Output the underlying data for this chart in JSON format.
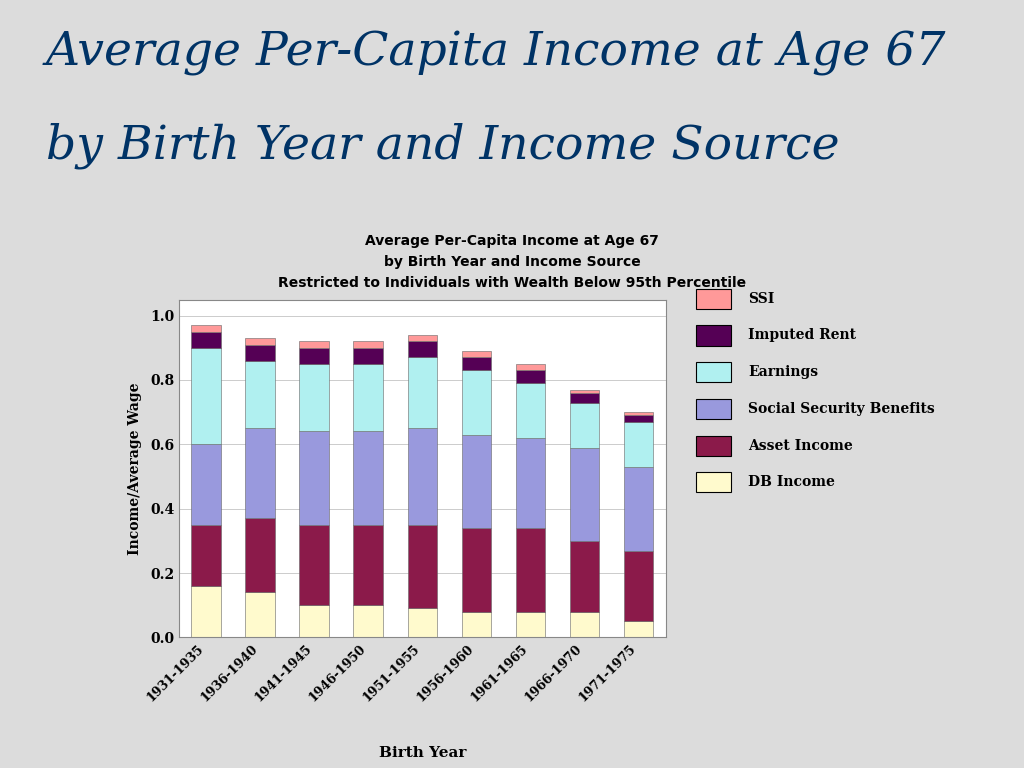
{
  "title_line1": "Average Per-Capita Income at Age 67",
  "title_line2": "by Birth Year and Income Source",
  "chart_subtitle1": "Average Per-Capita Income at Age 67",
  "chart_subtitle2": "by Birth Year and Income Source",
  "chart_subtitle3": "Restricted to Individuals with Wealth Below 95th Percentile",
  "xlabel": "Birth Year",
  "ylabel": "Income/Average Wage",
  "categories": [
    "1931-1935",
    "1936-1940",
    "1941-1945",
    "1946-1950",
    "1951-1955",
    "1956-1960",
    "1961-1965",
    "1966-1970",
    "1971-1975"
  ],
  "series_order": [
    "DB Income",
    "Asset Income",
    "Social Security Benefits",
    "Earnings",
    "Imputed Rent",
    "SSI"
  ],
  "series": {
    "DB Income": [
      0.16,
      0.14,
      0.1,
      0.1,
      0.09,
      0.08,
      0.08,
      0.08,
      0.05
    ],
    "Asset Income": [
      0.19,
      0.23,
      0.25,
      0.25,
      0.26,
      0.26,
      0.26,
      0.22,
      0.22
    ],
    "Social Security Benefits": [
      0.25,
      0.28,
      0.29,
      0.29,
      0.3,
      0.29,
      0.28,
      0.29,
      0.26
    ],
    "Earnings": [
      0.3,
      0.21,
      0.21,
      0.21,
      0.22,
      0.2,
      0.17,
      0.14,
      0.14
    ],
    "Imputed Rent": [
      0.05,
      0.05,
      0.05,
      0.05,
      0.05,
      0.04,
      0.04,
      0.03,
      0.02
    ],
    "SSI": [
      0.02,
      0.02,
      0.02,
      0.02,
      0.02,
      0.02,
      0.02,
      0.01,
      0.01
    ]
  },
  "colors": {
    "DB Income": "#FFFACD",
    "Asset Income": "#8B1A4A",
    "Social Security Benefits": "#9999DD",
    "Earnings": "#B0F0F0",
    "Imputed Rent": "#550055",
    "SSI": "#FF9999"
  },
  "legend_order": [
    "SSI",
    "Imputed Rent",
    "Earnings",
    "Social Security Benefits",
    "Asset Income",
    "DB Income"
  ],
  "ylim": [
    0.0,
    1.05
  ],
  "yticks": [
    0.0,
    0.2,
    0.4,
    0.6,
    0.8,
    1.0
  ],
  "slide_bg": "#DCDCDC",
  "chart_bg": "white",
  "title_color": "#003366",
  "separator_color": "#7799AA",
  "bar_width": 0.55
}
